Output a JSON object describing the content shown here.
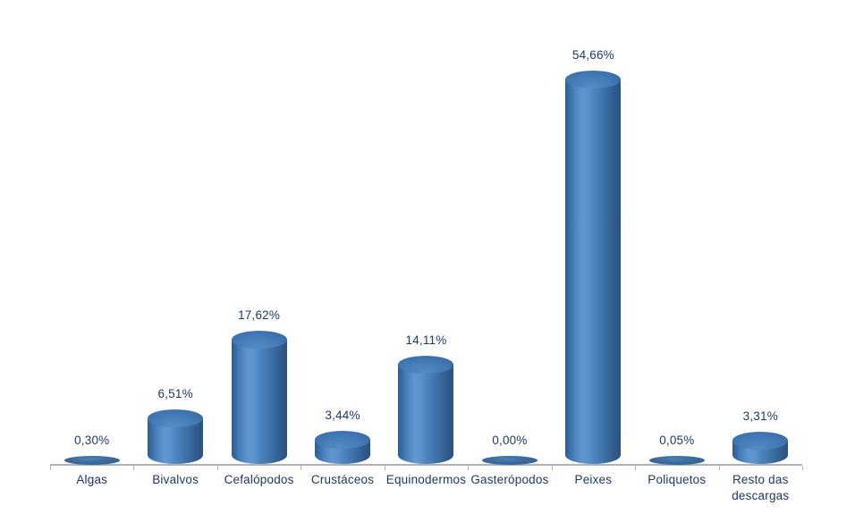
{
  "chart_data": {
    "type": "bar",
    "style": "3d-cylinder",
    "title": "",
    "xlabel": "",
    "ylabel": "",
    "ylim": [
      0,
      60
    ],
    "grid": false,
    "legend": false,
    "decimal_separator": ",",
    "categories": [
      "Algas",
      "Bivalvos",
      "Cefalópodos",
      "Crustáceos",
      "Equinodermos",
      "Gasterópodos",
      "Peixes",
      "Poliquetos",
      "Resto das descargas"
    ],
    "values": [
      0.3,
      6.51,
      17.62,
      3.44,
      14.11,
      0.0,
      54.66,
      0.05,
      3.31
    ],
    "value_labels": [
      "0,30%",
      "6,51%",
      "17,62%",
      "3,44%",
      "14,11%",
      "0,00%",
      "54,66%",
      "0,05%",
      "3,31%"
    ],
    "colors": {
      "bar_highlight": "#6196D0",
      "bar_mid": "#4A80BC",
      "bar_edge_dark": "#28517F",
      "bar_left_dark": "#2D5C91",
      "top_face": "#4278B5",
      "top_face_light": "#548CC7",
      "top_face_rim": "#35639A",
      "flat_center": "#4C80B4",
      "flat_edge": "#2E5A8C",
      "label_text": "#1F3864",
      "axis_line": "#AFB2B5",
      "background": "#FFFFFF"
    }
  }
}
